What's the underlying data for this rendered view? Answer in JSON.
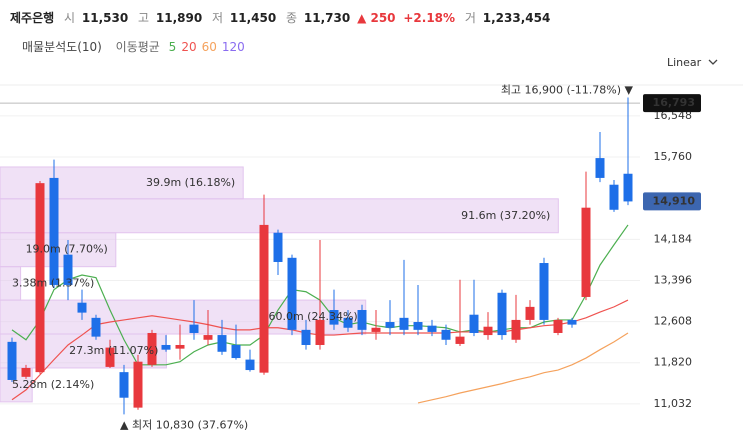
{
  "header": {
    "name": "제주은행",
    "quote": [
      {
        "label": "시",
        "value": "11,530"
      },
      {
        "label": "고",
        "value": "11,890"
      },
      {
        "label": "저",
        "value": "11,450"
      },
      {
        "label": "종",
        "value": "11,730"
      }
    ],
    "change": "▲ 250",
    "change_pct": "+2.18%",
    "volume_label": "거",
    "volume": "1,233,454",
    "scale_mode": "Linear"
  },
  "chart_data": {
    "type": "candlestick",
    "open": [
      12220,
      11550,
      11640,
      15360,
      13890,
      12970,
      12680,
      11740,
      11640,
      10960,
      11780,
      12160,
      12090,
      12550,
      12260,
      12350,
      12160,
      11880,
      11630,
      14310,
      13830,
      12450,
      12160,
      12830,
      12680,
      12830,
      12410,
      12600,
      12680,
      12600,
      12530,
      12450,
      12180,
      12740,
      12350,
      13160,
      12260,
      12640,
      13730,
      12390,
      12640,
      13080,
      15740,
      15230,
      15440
    ],
    "high": [
      12300,
      11780,
      15300,
      15710,
      14170,
      13220,
      12740,
      12260,
      11780,
      11970,
      12450,
      12350,
      12550,
      13020,
      12830,
      12640,
      12550,
      12070,
      15040,
      14370,
      13890,
      12640,
      14170,
      13220,
      12830,
      12930,
      12830,
      13020,
      13790,
      13310,
      12640,
      12550,
      13410,
      13410,
      12790,
      13220,
      13120,
      13020,
      13830,
      12680,
      12680,
      15480,
      16240,
      15320,
      16900
    ],
    "low": [
      11450,
      11510,
      11610,
      13250,
      13020,
      12640,
      12260,
      11720,
      10830,
      10920,
      11740,
      12030,
      11880,
      12260,
      12160,
      11970,
      11880,
      11650,
      11590,
      13500,
      12350,
      12070,
      12070,
      12450,
      12410,
      12350,
      12260,
      12350,
      12350,
      12350,
      12330,
      12160,
      12140,
      12330,
      12260,
      12260,
      12200,
      12550,
      12550,
      12350,
      12490,
      13020,
      15280,
      14710,
      14840
    ],
    "close": [
      11490,
      11720,
      15260,
      13310,
      13310,
      12780,
      12320,
      12110,
      11150,
      11840,
      12390,
      12070,
      12160,
      12390,
      12350,
      12030,
      11910,
      11680,
      14460,
      13750,
      12450,
      12160,
      12640,
      12550,
      12490,
      12450,
      12490,
      12490,
      12450,
      12450,
      12410,
      12260,
      12320,
      12390,
      12510,
      12350,
      12640,
      12890,
      12640,
      12640,
      12550,
      14790,
      15360,
      14750,
      14910
    ],
    "up_color": "#e8383d",
    "down_color": "#1e6fe8",
    "ylim": [
      10340,
      17140
    ],
    "yticks": [
      {
        "value": 16548,
        "label": "16,548"
      },
      {
        "value": 15760,
        "label": "15,760"
      },
      {
        "value": 14184,
        "label": "14,184"
      },
      {
        "value": 13396,
        "label": "13,396"
      },
      {
        "value": 12608,
        "label": "12,608"
      },
      {
        "value": 11820,
        "label": "11,820"
      },
      {
        "value": 11032,
        "label": "11,032"
      }
    ],
    "grid": true,
    "price_markers": [
      {
        "value": 16793,
        "label": "16,793",
        "color": "#111111"
      },
      {
        "value": 14910,
        "label": "14,910",
        "color": "#3c66b0"
      }
    ],
    "max_annotation": {
      "value": 16900,
      "label": "최고 16,900 (-11.78%) ▼"
    },
    "min_annotation": {
      "value": 10830,
      "label": "▲ 최저 10,830 (37.67%)"
    },
    "volume_profile": {
      "title": "매물분석도(10)",
      "bins": [
        11070,
        11720,
        12370,
        13020,
        13660,
        14310,
        14960,
        15570
      ],
      "values": [
        5.28,
        27.3,
        60.0,
        3.38,
        19.0,
        91.6,
        39.9
      ],
      "value_labels": [
        "5.28m (2.14%)",
        "27.3m (11.07%)",
        "60.0m (24.34%)",
        "3.38m (1.37%)",
        "19.0m (7.70%)",
        "91.6m (37.20%)",
        "39.9m (16.18%)"
      ],
      "xlim": [
        0,
        105
      ],
      "color": "#e2c4ee"
    },
    "moving_averages": {
      "title": "이동평균",
      "series": [
        {
          "name": "5",
          "color": "#4caf50",
          "values": [
            12450,
            12260,
            12640,
            13220,
            13410,
            13500,
            13450,
            12830,
            12260,
            11780,
            11780,
            11780,
            11840,
            12030,
            12160,
            12220,
            12160,
            12160,
            12350,
            12830,
            13220,
            13180,
            13020,
            12680,
            12550,
            12600,
            12530,
            12490,
            12530,
            12530,
            12510,
            12490,
            12410,
            12450,
            12410,
            12450,
            12490,
            12490,
            12600,
            12640,
            12640,
            13120,
            13690,
            14080,
            14460
          ]
        },
        {
          "name": "20",
          "color": "#ef5350",
          "values": [
            11110,
            11300,
            11590,
            11880,
            12160,
            12350,
            12550,
            12600,
            12640,
            12680,
            12720,
            12680,
            12640,
            12600,
            12550,
            12490,
            12450,
            12450,
            12490,
            12490,
            12450,
            12390,
            12350,
            12350,
            12370,
            12390,
            12390,
            12390,
            12390,
            12390,
            12390,
            12390,
            12410,
            12410,
            12410,
            12410,
            12450,
            12490,
            12530,
            12550,
            12600,
            12680,
            12790,
            12890,
            13020
          ]
        },
        {
          "name": "60",
          "color": "#f5a25d",
          "values": [
            null,
            null,
            null,
            null,
            null,
            null,
            null,
            null,
            null,
            null,
            null,
            null,
            null,
            null,
            null,
            null,
            null,
            null,
            null,
            null,
            null,
            null,
            null,
            null,
            null,
            null,
            null,
            null,
            null,
            11050,
            11110,
            11170,
            11240,
            11300,
            11360,
            11420,
            11490,
            11550,
            11630,
            11680,
            11780,
            11910,
            12070,
            12220,
            12390
          ]
        },
        {
          "name": "120",
          "color": "#8a6cf0"
        }
      ]
    }
  }
}
